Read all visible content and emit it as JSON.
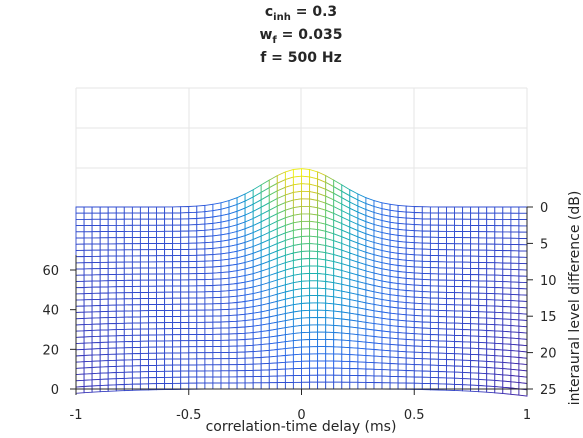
{
  "chart_data": {
    "type": "surface",
    "title_lines": [
      {
        "base": "c",
        "sub": "inh",
        "rest": " = 0.3"
      },
      {
        "base": "w",
        "sub": "f",
        "rest": " = 0.035"
      },
      {
        "base": "f = 500 Hz",
        "sub": "",
        "rest": ""
      }
    ],
    "xlabel": "correlation-time delay (ms)",
    "ylabel": "interaural level difference (dB)",
    "zlabel": "",
    "x_ticks": [
      "-1",
      "-0.5",
      "0",
      "0.5",
      "1"
    ],
    "y_ticks": [
      "0",
      "5",
      "10",
      "15",
      "20",
      "25"
    ],
    "z_ticks": [
      "0",
      "20",
      "40",
      "60"
    ],
    "xlim": [
      -1,
      1
    ],
    "ylim": [
      0,
      25
    ],
    "zlim": [
      0,
      100
    ],
    "grid": true,
    "colormap": "parula",
    "surface": {
      "baseline": 60,
      "peak_at_ild_0": 87,
      "peak_at_ild_25": 0,
      "peak_delay_shift_ms": [
        0.0,
        0.3
      ],
      "peak_width_ms": 0.17,
      "edge_drop_at_ild_25": 5
    }
  },
  "colors": {
    "axis_box": "#e6e6e6",
    "axis_text": "#262626",
    "mesh_low": "#3e26a8",
    "mesh_high": "#f9fb0e"
  }
}
